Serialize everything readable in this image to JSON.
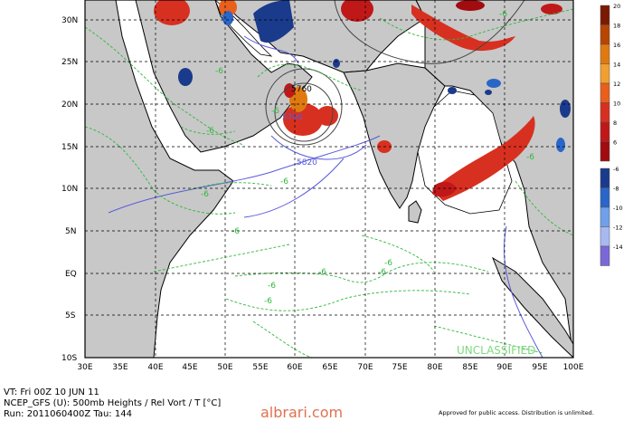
{
  "map": {
    "lat_labels": [
      "30N",
      "25N",
      "20N",
      "15N",
      "10N",
      "5N",
      "EQ",
      "5S",
      "10S"
    ],
    "lon_labels": [
      "30E",
      "35E",
      "40E",
      "45E",
      "50E",
      "55E",
      "60E",
      "65E",
      "70E",
      "75E",
      "80E",
      "85E",
      "90E",
      "95E",
      "100E"
    ],
    "contour_labels": {
      "height": [
        "5760",
        "5760",
        "5820"
      ],
      "temp": [
        "-6",
        "-6",
        "-6",
        "-6",
        "-6",
        "-6",
        "-6",
        "-6",
        "-6",
        "-6",
        "-6",
        "-6",
        "-6"
      ]
    },
    "watermark": "UNCLASSIFIED"
  },
  "legend": {
    "values": [
      "20",
      "18",
      "16",
      "14",
      "12",
      "10",
      "8",
      "6",
      "-6",
      "-8",
      "-10",
      "-12",
      "-14"
    ],
    "colors": [
      "#7a1a00",
      "#b84500",
      "#e07a10",
      "#f0a030",
      "#e8601c",
      "#d83020",
      "#c01818",
      "#a00c10",
      "#1a3a8c",
      "#2a66c8",
      "#70a0e8",
      "#a8b8f0",
      "#7a68d8"
    ]
  },
  "footer": {
    "line1": "VT: Fri 00Z 10 JUN 11",
    "line2": "NCEP_GFS (U): 500mb Heights / Rel Vort / T [°C]",
    "line3": "Run: 2011060400Z Tau: 144",
    "site": "albrari.com",
    "approval": "Approved for public access. Distribution is unlimited."
  }
}
